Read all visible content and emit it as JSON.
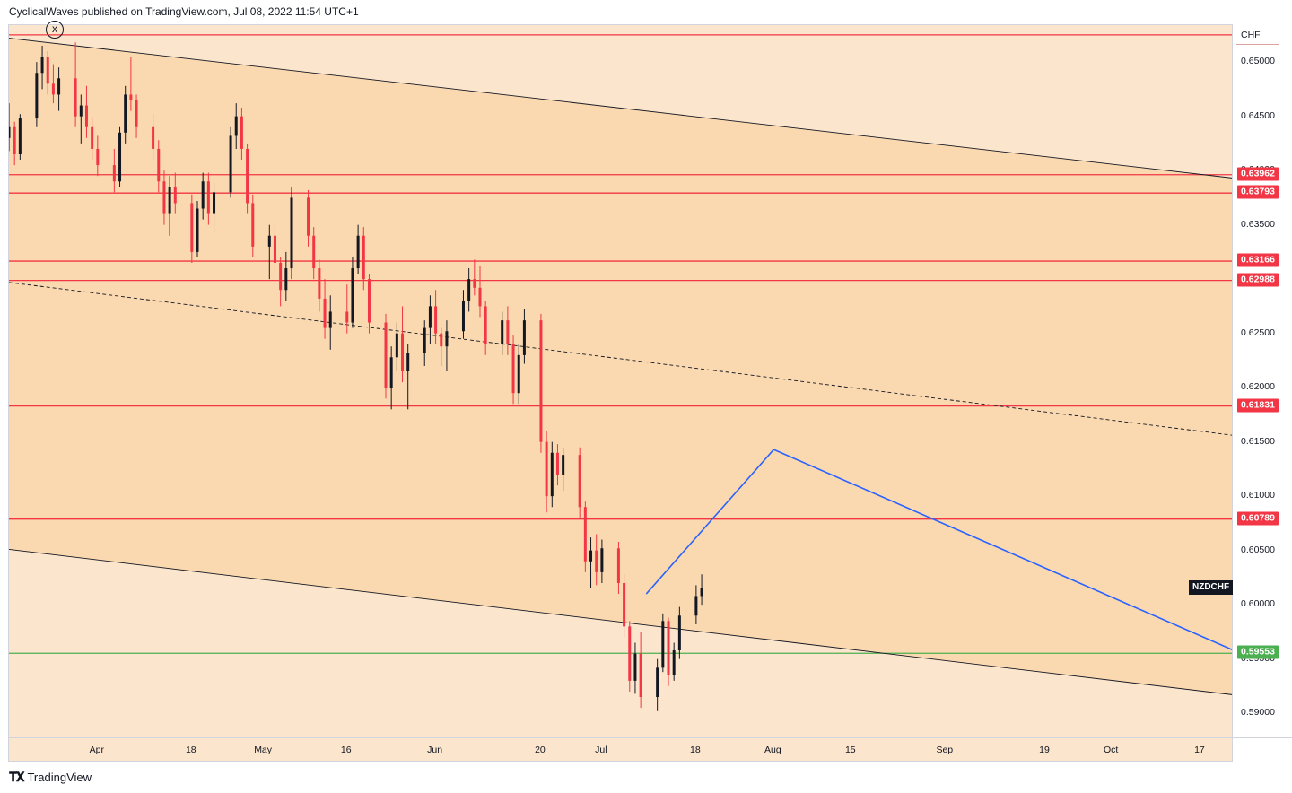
{
  "header": {
    "publisher": "CyclicalWaves published on TradingView.com, Jul 08, 2022 11:54 UTC+1"
  },
  "footer": {
    "brand": "TradingView",
    "logo_icon": "tradingview-logo-icon"
  },
  "close_marker": {
    "label": "x"
  },
  "colors": {
    "background": "#fbe5cc",
    "channel_fill": "#fbd9b0",
    "level_line": "#f23645",
    "support_line": "#4caf50",
    "projection": "#2962ff",
    "candle_up": "#131722",
    "candle_down": "#f23645"
  },
  "chart_data": {
    "type": "candlestick",
    "symbol": "NZDCHF",
    "currency": "CHF",
    "x_range": [
      "2022-03-16",
      "2022-10-23"
    ],
    "ylim": [
      0.5877,
      0.6534
    ],
    "y_ticks": [
      "0.65000",
      "0.64500",
      "0.64000",
      "0.63500",
      "0.63000",
      "0.62500",
      "0.62000",
      "0.61500",
      "0.61000",
      "0.60500",
      "0.60000",
      "0.59500",
      "0.59000"
    ],
    "x_ticks": [
      {
        "label": "Apr",
        "date": "2022-04-01"
      },
      {
        "label": "18",
        "date": "2022-04-18"
      },
      {
        "label": "May",
        "date": "2022-05-01"
      },
      {
        "label": "16",
        "date": "2022-05-16"
      },
      {
        "label": "Jun",
        "date": "2022-06-01"
      },
      {
        "label": "20",
        "date": "2022-06-20"
      },
      {
        "label": "Jul",
        "date": "2022-07-01"
      },
      {
        "label": "18",
        "date": "2022-07-18"
      },
      {
        "label": "Aug",
        "date": "2022-08-01"
      },
      {
        "label": "15",
        "date": "2022-08-15"
      },
      {
        "label": "Sep",
        "date": "2022-09-01"
      },
      {
        "label": "19",
        "date": "2022-09-19"
      },
      {
        "label": "Oct",
        "date": "2022-10-01"
      },
      {
        "label": "17",
        "date": "2022-10-17"
      }
    ],
    "horizontal_levels": [
      {
        "value": 0.6525,
        "label": "",
        "color": "#f23645"
      },
      {
        "value": 0.63962,
        "label": "0.63962",
        "color": "#f23645"
      },
      {
        "value": 0.63793,
        "label": "0.63793",
        "color": "#f23645"
      },
      {
        "value": 0.63166,
        "label": "0.63166",
        "color": "#f23645"
      },
      {
        "value": 0.62988,
        "label": "0.62988",
        "color": "#f23645"
      },
      {
        "value": 0.61831,
        "label": "0.61831",
        "color": "#f23645"
      },
      {
        "value": 0.60789,
        "label": "0.60789",
        "color": "#f23645"
      },
      {
        "value": 0.59553,
        "label": "0.59553",
        "color": "#4caf50"
      }
    ],
    "last_price": 0.6015,
    "trend_lines": [
      {
        "name": "channel-top",
        "style": "solid",
        "points": [
          [
            "2022-03-16",
            0.6522
          ],
          [
            "2022-10-23",
            0.6393
          ]
        ]
      },
      {
        "name": "channel-mid",
        "style": "dashed",
        "points": [
          [
            "2022-03-16",
            0.6297
          ],
          [
            "2022-10-23",
            0.6156
          ]
        ]
      },
      {
        "name": "channel-bottom",
        "style": "solid",
        "points": [
          [
            "2022-03-16",
            0.6051
          ],
          [
            "2022-10-23",
            0.5917
          ]
        ]
      }
    ],
    "projection": [
      [
        "2022-07-09",
        0.601
      ],
      [
        "2022-08-01",
        0.6143
      ],
      [
        "2022-10-23",
        0.5958
      ]
    ],
    "ohlc": [
      [
        "2022-03-16",
        0.643,
        0.6462,
        0.6418,
        0.644
      ],
      [
        "2022-03-17",
        0.644,
        0.6445,
        0.6405,
        0.6415
      ],
      [
        "2022-03-18",
        0.6415,
        0.6452,
        0.641,
        0.6448
      ],
      [
        "2022-03-21",
        0.6448,
        0.65,
        0.644,
        0.649
      ],
      [
        "2022-03-22",
        0.649,
        0.6515,
        0.6475,
        0.6505
      ],
      [
        "2022-03-23",
        0.6505,
        0.651,
        0.647,
        0.648
      ],
      [
        "2022-03-24",
        0.648,
        0.6498,
        0.6462,
        0.647
      ],
      [
        "2022-03-25",
        0.647,
        0.6495,
        0.6455,
        0.6485
      ],
      [
        "2022-03-28",
        0.6485,
        0.6518,
        0.644,
        0.645
      ],
      [
        "2022-03-29",
        0.645,
        0.647,
        0.6425,
        0.646
      ],
      [
        "2022-03-30",
        0.646,
        0.6478,
        0.643,
        0.644
      ],
      [
        "2022-03-31",
        0.644,
        0.6448,
        0.641,
        0.642
      ],
      [
        "2022-04-01",
        0.642,
        0.6432,
        0.6395,
        0.6405
      ],
      [
        "2022-04-04",
        0.6405,
        0.642,
        0.638,
        0.639
      ],
      [
        "2022-04-05",
        0.639,
        0.644,
        0.6385,
        0.6435
      ],
      [
        "2022-04-06",
        0.6435,
        0.6478,
        0.6425,
        0.647
      ],
      [
        "2022-04-07",
        0.647,
        0.6505,
        0.6455,
        0.6465
      ],
      [
        "2022-04-08",
        0.6465,
        0.647,
        0.643,
        0.644
      ],
      [
        "2022-04-11",
        0.644,
        0.6452,
        0.641,
        0.642
      ],
      [
        "2022-04-12",
        0.642,
        0.6428,
        0.638,
        0.639
      ],
      [
        "2022-04-13",
        0.639,
        0.64,
        0.635,
        0.636
      ],
      [
        "2022-04-14",
        0.636,
        0.6395,
        0.634,
        0.6385
      ],
      [
        "2022-04-15",
        0.6385,
        0.6398,
        0.636,
        0.637
      ],
      [
        "2022-04-18",
        0.637,
        0.6378,
        0.6315,
        0.6325
      ],
      [
        "2022-04-19",
        0.6325,
        0.6372,
        0.632,
        0.6365
      ],
      [
        "2022-04-20",
        0.6365,
        0.6398,
        0.6355,
        0.639
      ],
      [
        "2022-04-21",
        0.639,
        0.6398,
        0.635,
        0.636
      ],
      [
        "2022-04-22",
        0.636,
        0.639,
        0.6342,
        0.638
      ],
      [
        "2022-04-25",
        0.638,
        0.644,
        0.6375,
        0.6432
      ],
      [
        "2022-04-26",
        0.6432,
        0.6462,
        0.642,
        0.645
      ],
      [
        "2022-04-27",
        0.645,
        0.6458,
        0.641,
        0.642
      ],
      [
        "2022-04-28",
        0.642,
        0.6425,
        0.636,
        0.637
      ],
      [
        "2022-04-29",
        0.637,
        0.6378,
        0.632,
        0.633
      ],
      [
        "2022-05-02",
        0.633,
        0.635,
        0.63,
        0.634
      ],
      [
        "2022-05-03",
        0.634,
        0.6355,
        0.6305,
        0.6315
      ],
      [
        "2022-05-04",
        0.6315,
        0.632,
        0.6275,
        0.629
      ],
      [
        "2022-05-05",
        0.629,
        0.6325,
        0.628,
        0.631
      ],
      [
        "2022-05-06",
        0.631,
        0.6385,
        0.63,
        0.6375
      ],
      [
        "2022-05-09",
        0.6375,
        0.6382,
        0.633,
        0.634
      ],
      [
        "2022-05-10",
        0.634,
        0.6348,
        0.63,
        0.631
      ],
      [
        "2022-05-11",
        0.631,
        0.6318,
        0.627,
        0.6282
      ],
      [
        "2022-05-12",
        0.6282,
        0.63,
        0.6245,
        0.6255
      ],
      [
        "2022-05-13",
        0.6255,
        0.6285,
        0.6235,
        0.627
      ],
      [
        "2022-05-16",
        0.627,
        0.6295,
        0.625,
        0.626
      ],
      [
        "2022-05-17",
        0.626,
        0.632,
        0.6255,
        0.631
      ],
      [
        "2022-05-18",
        0.631,
        0.635,
        0.6305,
        0.634
      ],
      [
        "2022-05-19",
        0.634,
        0.6348,
        0.629,
        0.63
      ],
      [
        "2022-05-20",
        0.63,
        0.6305,
        0.625,
        0.626
      ],
      [
        "2022-05-23",
        0.626,
        0.6268,
        0.619,
        0.62
      ],
      [
        "2022-05-24",
        0.62,
        0.6238,
        0.618,
        0.6228
      ],
      [
        "2022-05-25",
        0.6228,
        0.626,
        0.6215,
        0.625
      ],
      [
        "2022-05-26",
        0.625,
        0.6275,
        0.6205,
        0.6215
      ],
      [
        "2022-05-27",
        0.6215,
        0.624,
        0.618,
        0.6232
      ],
      [
        "2022-05-30",
        0.6232,
        0.6262,
        0.622,
        0.6255
      ],
      [
        "2022-05-31",
        0.6255,
        0.6285,
        0.624,
        0.6275
      ],
      [
        "2022-06-01",
        0.6275,
        0.629,
        0.624,
        0.625
      ],
      [
        "2022-06-02",
        0.625,
        0.6255,
        0.622,
        0.6238
      ],
      [
        "2022-06-03",
        0.6238,
        0.6262,
        0.6215,
        0.6252
      ],
      [
        "2022-06-06",
        0.6252,
        0.629,
        0.6245,
        0.628
      ],
      [
        "2022-06-07",
        0.628,
        0.631,
        0.627,
        0.63
      ],
      [
        "2022-06-08",
        0.63,
        0.6318,
        0.6285,
        0.6292
      ],
      [
        "2022-06-09",
        0.6292,
        0.6312,
        0.6265,
        0.6275
      ],
      [
        "2022-06-10",
        0.6275,
        0.628,
        0.623,
        0.624
      ],
      [
        "2022-06-13",
        0.624,
        0.627,
        0.623,
        0.6262
      ],
      [
        "2022-06-14",
        0.6262,
        0.6275,
        0.623,
        0.624
      ],
      [
        "2022-06-15",
        0.624,
        0.6248,
        0.6185,
        0.6195
      ],
      [
        "2022-06-16",
        0.6195,
        0.624,
        0.6185,
        0.623
      ],
      [
        "2022-06-17",
        0.623,
        0.6272,
        0.6222,
        0.6262
      ],
      [
        "2022-06-20",
        0.6262,
        0.6268,
        0.614,
        0.615
      ],
      [
        "2022-06-21",
        0.615,
        0.616,
        0.6085,
        0.61
      ],
      [
        "2022-06-22",
        0.61,
        0.615,
        0.609,
        0.614
      ],
      [
        "2022-06-23",
        0.614,
        0.6148,
        0.611,
        0.612
      ],
      [
        "2022-06-24",
        0.612,
        0.6145,
        0.6105,
        0.6138
      ],
      [
        "2022-06-27",
        0.6138,
        0.6145,
        0.608,
        0.609
      ],
      [
        "2022-06-28",
        0.609,
        0.6095,
        0.603,
        0.604
      ],
      [
        "2022-06-29",
        0.604,
        0.6062,
        0.6015,
        0.605
      ],
      [
        "2022-06-30",
        0.605,
        0.6065,
        0.6018,
        0.603
      ],
      [
        "2022-07-01",
        0.603,
        0.606,
        0.602,
        0.6052
      ],
      [
        "2022-07-04",
        0.6052,
        0.6058,
        0.601,
        0.602
      ],
      [
        "2022-07-05",
        0.602,
        0.6028,
        0.597,
        0.598
      ],
      [
        "2022-07-06",
        0.598,
        0.5985,
        0.592,
        0.593
      ],
      [
        "2022-07-07",
        0.593,
        0.5965,
        0.5918,
        0.5955
      ],
      [
        "2022-07-08",
        0.5955,
        0.5975,
        0.5905,
        0.5915
      ],
      [
        "2022-07-11",
        0.5915,
        0.595,
        0.5902,
        0.5942
      ],
      [
        "2022-07-12",
        0.5942,
        0.5992,
        0.5938,
        0.5985
      ],
      [
        "2022-07-13",
        0.5985,
        0.5988,
        0.5925,
        0.5935
      ],
      [
        "2022-07-14",
        0.5935,
        0.5965,
        0.593,
        0.5958
      ],
      [
        "2022-07-15",
        0.5958,
        0.5998,
        0.595,
        0.599
      ],
      [
        "2022-07-18",
        0.599,
        0.6018,
        0.5982,
        0.6008
      ],
      [
        "2022-07-19",
        0.6008,
        0.6028,
        0.6,
        0.6015
      ]
    ]
  }
}
